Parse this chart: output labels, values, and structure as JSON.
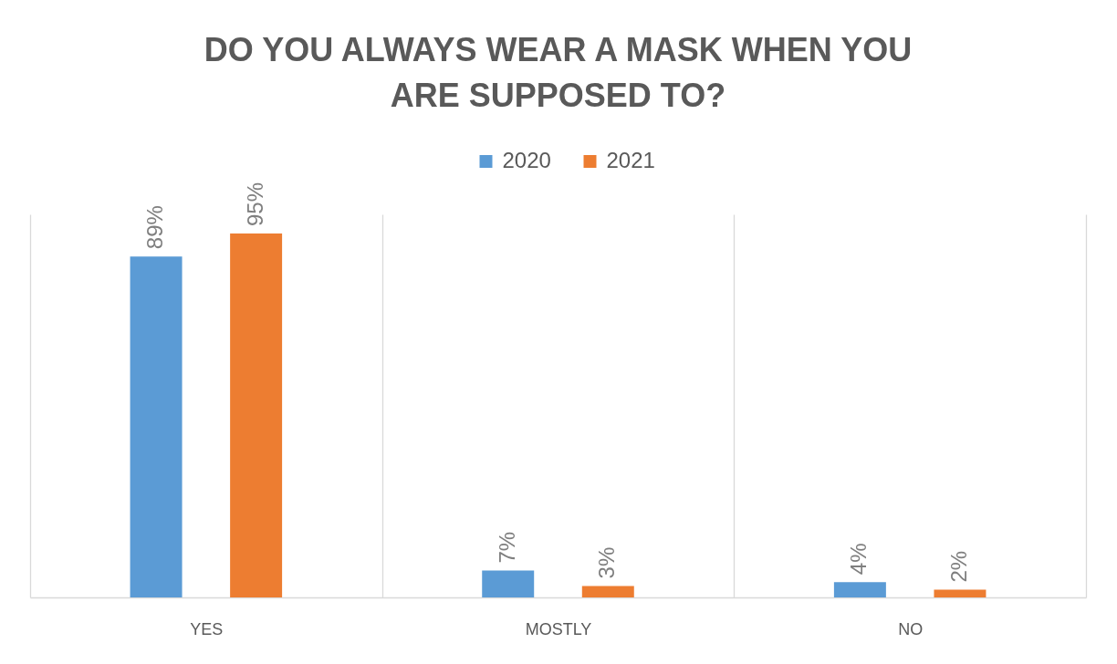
{
  "chart_data": {
    "type": "bar",
    "title": "DO YOU ALWAYS WEAR A MASK WHEN YOU ARE SUPPOSED TO?",
    "categories": [
      "YES",
      "MOSTLY",
      "NO"
    ],
    "series": [
      {
        "name": "2020",
        "color": "#5b9bd5",
        "values": [
          89,
          7,
          4
        ],
        "value_labels": [
          "89%",
          "7%",
          "4%"
        ]
      },
      {
        "name": "2021",
        "color": "#ed7d31",
        "values": [
          95,
          3,
          2
        ],
        "value_labels": [
          "95%",
          "3%",
          "2%"
        ]
      }
    ],
    "legend": "top",
    "grid": "x"
  }
}
